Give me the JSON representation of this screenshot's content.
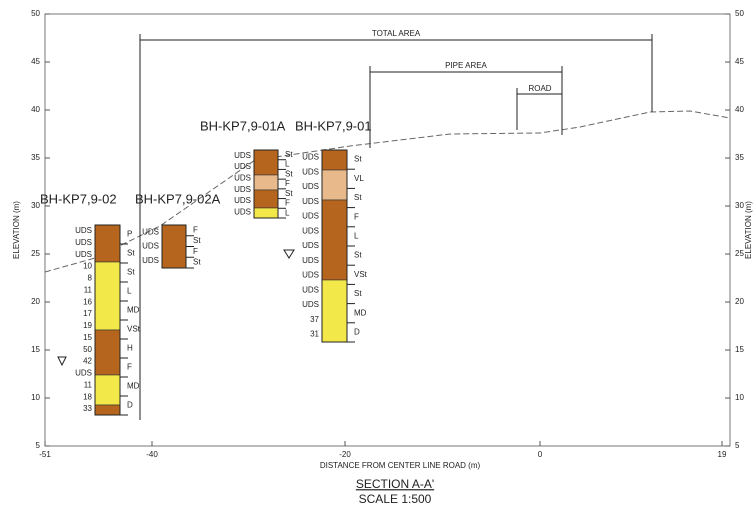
{
  "axes": {
    "y_label": "ELEVATION (m)",
    "y_label_right": "ELEVATION (m)",
    "x_label": "DISTANCE FROM CENTER LINE ROAD (m)",
    "y_ticks": [
      "50",
      "45",
      "40",
      "35",
      "30",
      "25",
      "20",
      "15",
      "10",
      "5"
    ],
    "x_ticks": [
      "-51",
      "-40",
      "-20",
      "0",
      "19"
    ]
  },
  "dimensions": {
    "total_area": "TOTAL AREA",
    "pipe_area": "PIPE AREA",
    "road": "ROAD"
  },
  "boreholes": [
    {
      "name": "BH-KP7,9-02",
      "left_labels": [
        "UDS",
        "UDS",
        "UDS",
        "10",
        "8",
        "11",
        "16",
        "17",
        "19",
        "15",
        "50",
        "42",
        "UDS",
        "11",
        "18",
        "33"
      ],
      "right_labels": [
        "P",
        "St",
        "St",
        "L",
        "MD",
        "VSt",
        "H",
        "F",
        "MD",
        "D"
      ]
    },
    {
      "name": "BH-KP7,9-02A",
      "left_labels": [
        "UDS",
        "UDS",
        "UDS"
      ],
      "right_labels": [
        "F",
        "St",
        "F",
        "St"
      ]
    },
    {
      "name": "BH-KP7,9-01A",
      "left_labels": [
        "UDS",
        "UDS",
        "UDS",
        "UDS",
        "UDS",
        "UDS"
      ],
      "right_labels": [
        "St",
        "L",
        "St",
        "F",
        "St",
        "F",
        "L"
      ]
    },
    {
      "name": "BH-KP7,9-01",
      "left_labels": [
        "UDS",
        "UDS",
        "UDS",
        "UDS",
        "UDS",
        "UDS",
        "UDS",
        "UDS",
        "UDS",
        "UDS",
        "UDS",
        "37",
        "31"
      ],
      "right_labels": [
        "St",
        "VL",
        "St",
        "F",
        "L",
        "St",
        "VSt",
        "St",
        "MD",
        "D"
      ]
    }
  ],
  "footer": {
    "title": "SECTION A-A'",
    "scale": "SCALE 1:500"
  }
}
